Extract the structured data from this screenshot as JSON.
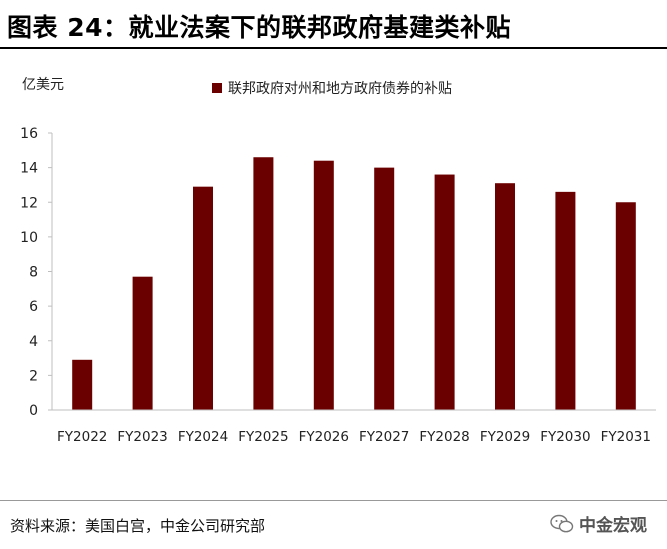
{
  "title": "图表 24：就业法案下的联邦政府基建类补贴",
  "unit_label": "亿美元",
  "source": "资料来源：美国白宫，中金公司研究部",
  "watermark": "中金宏观",
  "colors": {
    "bar": "#6B0000",
    "axis": "#bfbfbf"
  },
  "chart_data": {
    "type": "bar",
    "title": "图表 24：就业法案下的联邦政府基建类补贴",
    "ylabel": "亿美元",
    "xlabel": "",
    "ylim": [
      0,
      16
    ],
    "yticks": [
      0,
      2,
      4,
      6,
      8,
      10,
      12,
      14,
      16
    ],
    "grid": false,
    "legend_position": "top",
    "categories": [
      "FY2022",
      "FY2023",
      "FY2024",
      "FY2025",
      "FY2026",
      "FY2027",
      "FY2028",
      "FY2029",
      "FY2030",
      "FY2031"
    ],
    "series": [
      {
        "name": "联邦政府对州和地方政府债券的补贴",
        "values": [
          2.9,
          7.7,
          12.9,
          14.6,
          14.4,
          14.0,
          13.6,
          13.1,
          12.6,
          12.0
        ]
      }
    ]
  }
}
